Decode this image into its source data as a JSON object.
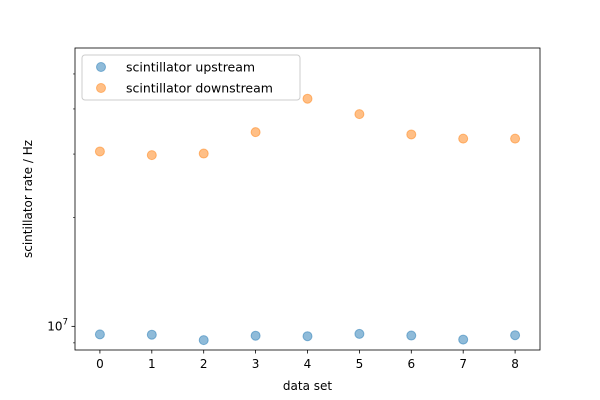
{
  "chart_data": {
    "type": "scatter",
    "xlabel": "data set",
    "ylabel": "scintillator rate / Hz",
    "x": [
      0,
      1,
      2,
      3,
      4,
      5,
      6,
      7,
      8
    ],
    "xlim": [
      -0.48,
      8.48
    ],
    "ylim": [
      8600000,
      59000000
    ],
    "yscale": "log",
    "xticks": [
      "0",
      "1",
      "2",
      "3",
      "4",
      "5",
      "6",
      "7",
      "8"
    ],
    "yticks": [
      {
        "value": 10000000,
        "base": "10",
        "exp": "7"
      }
    ],
    "grid": false,
    "legend_position": "upper-left",
    "series": [
      {
        "name": "scintillator upstream",
        "color": "#1f77b4",
        "values": [
          9500000,
          9480000,
          9160000,
          9420000,
          9390000,
          9530000,
          9430000,
          9190000,
          9450000
        ]
      },
      {
        "name": "scintillator downstream",
        "color": "#ff7f0e",
        "values": [
          30500000,
          29800000,
          30100000,
          34500000,
          42700000,
          38700000,
          34000000,
          33100000,
          33100000
        ]
      }
    ]
  }
}
